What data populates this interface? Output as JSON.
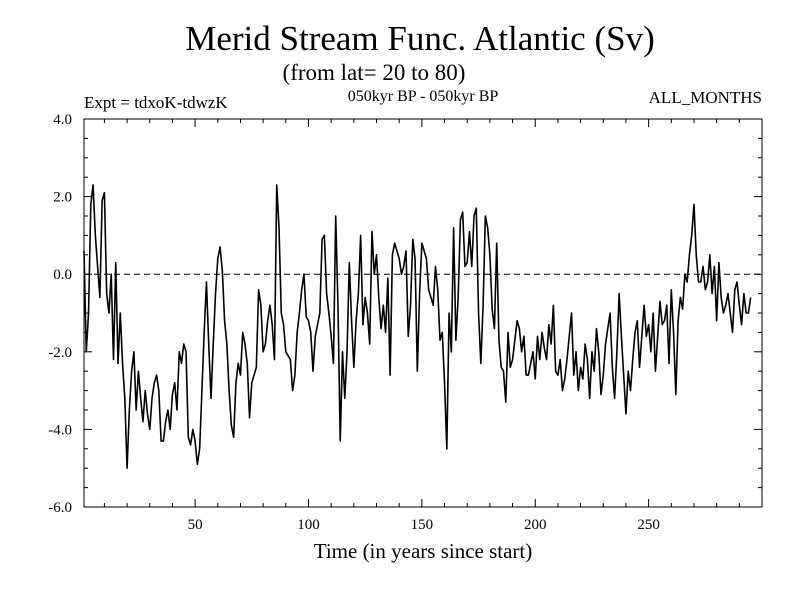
{
  "chart_data": {
    "type": "line",
    "title": "Merid Stream Func. Atlantic (Sv)",
    "subtitle": "(from lat= 20 to 80)",
    "annotation_left": "Expt = tdxoK-tdwzK",
    "annotation_center": "050kyr BP - 050kyr BP",
    "annotation_right": "ALL_MONTHS",
    "xlabel": "Time (in years since start)",
    "ylabel": "",
    "xlim": [
      1,
      300
    ],
    "ylim": [
      -6.0,
      4.0
    ],
    "x_ticks": [
      50,
      100,
      150,
      200,
      250
    ],
    "y_ticks": [
      4.0,
      2.0,
      0.0,
      -2.0,
      -4.0,
      -6.0
    ],
    "y_tick_labels": [
      "4.0",
      "2.0",
      "0.0",
      "-2.0",
      "-4.0",
      "-6.0"
    ],
    "reference_line": 0.0,
    "reference_line_style": "dashed",
    "grid": false,
    "line_color": "#000000",
    "x_start": 1,
    "x_step": 1,
    "series": [
      {
        "values": [
          0.6,
          -2.0,
          -1.0,
          1.8,
          2.3,
          1.0,
          0.2,
          -0.6,
          1.9,
          2.1,
          -0.5,
          -1.0,
          0.0,
          -2.2,
          0.3,
          -2.3,
          -1.0,
          -2.3,
          -3.2,
          -5.0,
          -3.5,
          -2.5,
          -2.0,
          -3.5,
          -2.5,
          -3.2,
          -3.8,
          -3.0,
          -3.6,
          -4.0,
          -3.2,
          -2.8,
          -2.6,
          -3.0,
          -4.3,
          -4.3,
          -3.8,
          -3.5,
          -4.0,
          -3.1,
          -2.8,
          -3.5,
          -2.0,
          -2.3,
          -1.8,
          -2.0,
          -4.2,
          -4.4,
          -4.0,
          -4.3,
          -4.9,
          -4.5,
          -3.0,
          -1.5,
          -0.2,
          -1.8,
          -3.2,
          -1.8,
          -0.5,
          0.4,
          0.7,
          0.1,
          -1.2,
          -1.8,
          -3.0,
          -3.9,
          -4.2,
          -2.8,
          -2.3,
          -2.6,
          -1.5,
          -1.8,
          -2.3,
          -3.7,
          -2.8,
          -2.6,
          -2.4,
          -0.4,
          -0.8,
          -2.0,
          -1.8,
          -1.2,
          -0.8,
          -1.3,
          -2.2,
          2.3,
          1.2,
          -1.0,
          -1.3,
          -2.0,
          -2.1,
          -2.2,
          -3.0,
          -2.6,
          -1.5,
          -1.0,
          -0.4,
          0.0,
          -1.1,
          -1.2,
          -1.5,
          -2.5,
          -1.6,
          -1.3,
          -1.0,
          0.9,
          1.0,
          -0.5,
          -1.0,
          -1.6,
          -2.3,
          1.5,
          -0.8,
          -4.3,
          -2.0,
          -3.2,
          -2.0,
          0.3,
          -1.2,
          -2.4,
          -1.2,
          -0.5,
          1.0,
          -1.3,
          -0.6,
          -1.0,
          -1.8,
          1.1,
          0.0,
          0.5,
          -0.6,
          -1.4,
          -0.8,
          -1.5,
          -0.1,
          -2.6,
          0.5,
          0.8,
          0.6,
          0.4,
          0.0,
          0.2,
          0.6,
          -1.6,
          -0.8,
          0.9,
          0.4,
          -2.5,
          -0.5,
          0.8,
          0.6,
          0.4,
          -0.4,
          -0.6,
          -0.8,
          0.2,
          -0.4,
          -1.7,
          -1.5,
          -2.8,
          -4.5,
          -1.0,
          -2.0,
          1.2,
          -1.7,
          -0.6,
          1.4,
          1.6,
          0.2,
          0.3,
          1.1,
          0.2,
          1.5,
          1.7,
          -1.0,
          -2.3,
          -0.8,
          1.5,
          1.2,
          0.5,
          -0.9,
          -1.4,
          0.8,
          -1.7,
          -2.4,
          -2.5,
          -3.3,
          -1.5,
          -2.4,
          -2.2,
          -1.7,
          -1.2,
          -1.4,
          -2.0,
          -1.6,
          -2.6,
          -2.6,
          -2.3,
          -2.0,
          -2.7,
          -1.6,
          -2.2,
          -1.5,
          -1.9,
          -2.2,
          -1.3,
          -1.8,
          -0.8,
          -2.5,
          -2.6,
          -2.2,
          -3.0,
          -2.7,
          -2.2,
          -1.6,
          -1.0,
          -2.6,
          -2.0,
          -3.0,
          -2.4,
          -2.7,
          -1.8,
          -2.2,
          -3.2,
          -2.0,
          -2.5,
          -1.4,
          -2.0,
          -3.1,
          -2.6,
          -1.8,
          -1.4,
          -1.0,
          -2.4,
          -3.2,
          -2.0,
          -0.5,
          -1.6,
          -2.6,
          -3.6,
          -2.5,
          -3.0,
          -2.2,
          -1.5,
          -1.2,
          -2.4,
          -1.6,
          -0.8,
          -1.6,
          -1.3,
          -2.0,
          -1.0,
          -2.5,
          -1.6,
          -0.7,
          -1.3,
          -1.2,
          -0.8,
          -2.3,
          -0.4,
          -1.5,
          -3.1,
          -1.2,
          -0.6,
          -0.9,
          0.0,
          -0.2,
          0.5,
          1.0,
          1.8,
          0.5,
          -0.2,
          -0.2,
          0.2,
          -0.4,
          -0.2,
          0.5,
          -0.5,
          0.2,
          -1.2,
          0.3,
          -0.6,
          -1.0,
          -0.8,
          -0.5,
          -1.0,
          -1.5,
          -0.4,
          -0.2,
          -0.8,
          -1.3,
          -0.5,
          -1.0,
          -1.0,
          -0.6
        ]
      }
    ]
  }
}
